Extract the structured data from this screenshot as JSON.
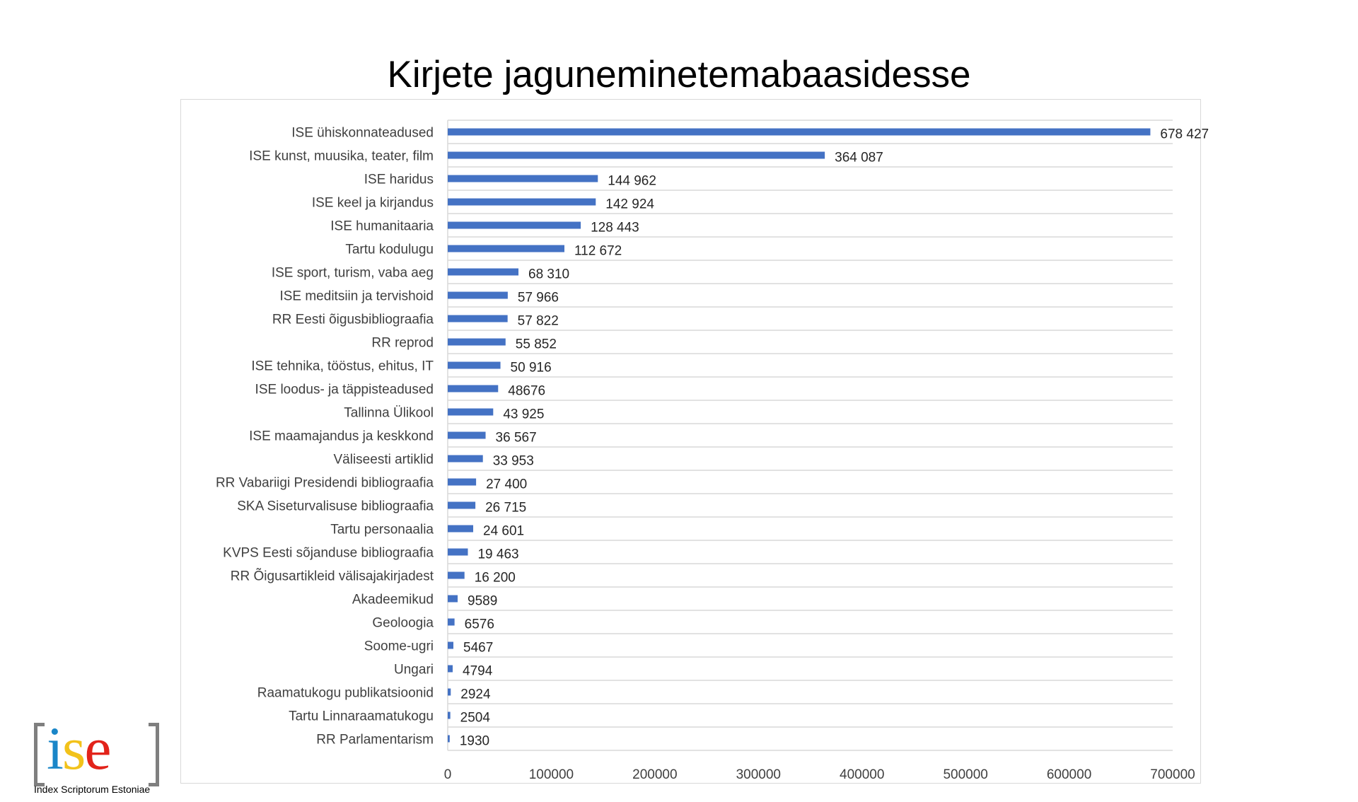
{
  "title": "Kirjete jaguneminetemabaasidesse",
  "logo": {
    "letters": [
      "i",
      "s",
      "e"
    ],
    "caption": "Index Scriptorum Estoniae"
  },
  "colors": {
    "bar": "#4472c4",
    "grid": "#d9d9d9",
    "frame": "#d9d9d9"
  },
  "chart_data": {
    "type": "bar",
    "orientation": "horizontal",
    "title": "Kirjete jaguneminetemabaasidesse",
    "xlabel": "",
    "ylabel": "",
    "xlim": [
      0,
      700000
    ],
    "ticks": [
      0,
      100000,
      200000,
      300000,
      400000,
      500000,
      600000,
      700000
    ],
    "tick_labels": [
      "0",
      "100000",
      "200000",
      "300000",
      "400000",
      "500000",
      "600000",
      "700000"
    ],
    "grid": "horizontal",
    "legend": "none",
    "categories": [
      "ISE ühiskonnateadused",
      "ISE kunst, muusika, teater, film",
      "ISE haridus",
      "ISE keel ja kirjandus",
      "ISE humanitaaria",
      "Tartu kodulugu",
      "ISE sport, turism, vaba aeg",
      "ISE meditsiin ja tervishoid",
      "RR Eesti õigusbibliograafia",
      "RR reprod",
      "ISE tehnika, tööstus, ehitus, IT",
      "ISE loodus- ja täppisteadused",
      "Tallinna Ülikool",
      "ISE maamajandus ja keskkond",
      "Väliseesti artiklid",
      "RR Vabariigi Presidendi bibliograafia",
      "SKA Siseturvalisuse bibliograafia",
      "Tartu personaalia",
      "KVPS Eesti sõjanduse bibliograafia",
      "RR Õigusartikleid välisajakirjadest",
      "Akadeemikud",
      "Geoloogia",
      "Soome-ugri",
      "Ungari",
      "Raamatukogu publikatsioonid",
      "Tartu Linnaraamatukogu",
      "RR Parlamentarism"
    ],
    "values": [
      678427,
      364087,
      144962,
      142924,
      128443,
      112672,
      68310,
      57966,
      57822,
      55852,
      50916,
      48676,
      43925,
      36567,
      33953,
      27400,
      26715,
      24601,
      19463,
      16200,
      9589,
      6576,
      5467,
      4794,
      2924,
      2504,
      1930
    ],
    "data_labels": [
      "678 427",
      "364 087",
      "144 962",
      "142 924",
      "128 443",
      "112 672",
      "68 310",
      "57 966",
      "57 822",
      "55 852",
      "50 916",
      "48676",
      "43 925",
      "36 567",
      "33 953",
      "27 400",
      "26 715",
      "24 601",
      "19 463",
      "16 200",
      "9589",
      "6576",
      "5467",
      "4794",
      "2924",
      "2504",
      "1930"
    ]
  }
}
